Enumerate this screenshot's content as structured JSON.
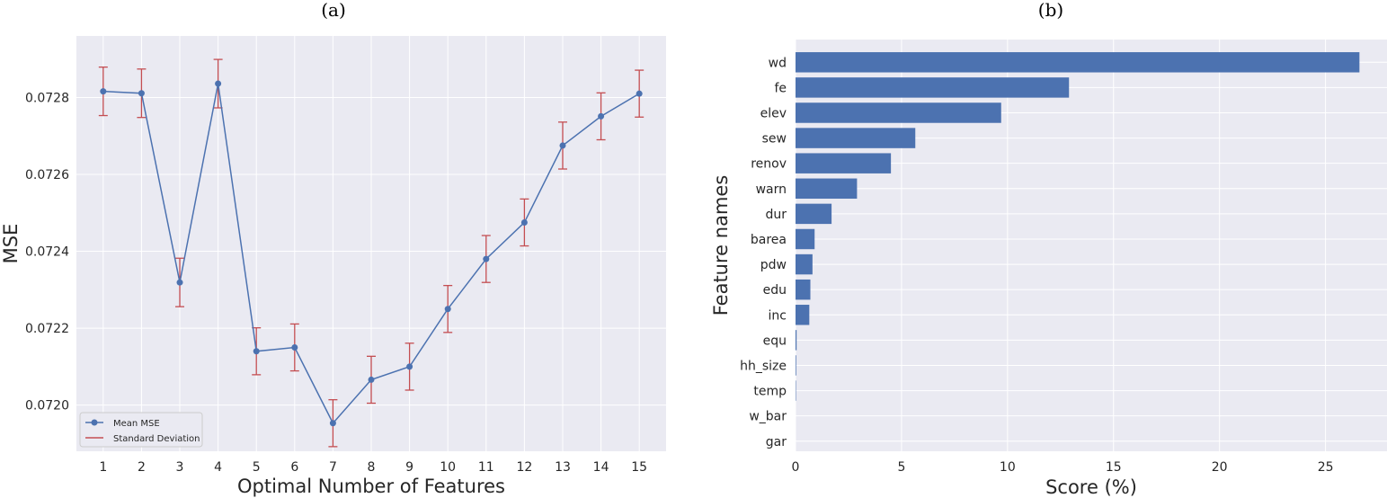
{
  "colors": {
    "panel_bg": "#eaeaf2",
    "grid": "#ffffff",
    "line": "#4c72b0",
    "errorbar": "#c44e52",
    "bar": "#4c72b0"
  },
  "chart_data": [
    {
      "type": "line",
      "title": "(a)",
      "xlabel": "Optimal Number of Features",
      "ylabel": "MSE",
      "x": [
        1,
        2,
        3,
        4,
        5,
        6,
        7,
        8,
        9,
        10,
        11,
        12,
        13,
        14,
        15
      ],
      "x_ticks": [
        "1",
        "2",
        "3",
        "4",
        "5",
        "6",
        "7",
        "8",
        "9",
        "10",
        "11",
        "12",
        "13",
        "14",
        "15"
      ],
      "xlim": [
        0.3,
        15.7
      ],
      "y_ticks": [
        "0.0720",
        "0.0722",
        "0.0724",
        "0.0726",
        "0.0728"
      ],
      "y_tick_values": [
        0.072,
        0.0722,
        0.0724,
        0.0726,
        0.0728
      ],
      "ylim": [
        0.07188,
        0.07296
      ],
      "grid": true,
      "legend_position": "lower-left",
      "series": [
        {
          "name": "Mean MSE",
          "values": [
            0.072816,
            0.072811,
            0.072319,
            0.072836,
            0.07214,
            0.07215,
            0.071953,
            0.072066,
            0.0721,
            0.07225,
            0.07238,
            0.072475,
            0.072675,
            0.072751,
            0.07281
          ],
          "std": [
            6.3e-05,
            6.3e-05,
            6.3e-05,
            6.3e-05,
            6.1e-05,
            6.1e-05,
            6.1e-05,
            6.1e-05,
            6.1e-05,
            6.1e-05,
            6.1e-05,
            6.1e-05,
            6.1e-05,
            6.1e-05,
            6.1e-05
          ]
        }
      ],
      "legend": [
        "Mean MSE",
        "Standard Deviation"
      ]
    },
    {
      "type": "bar",
      "orientation": "horizontal",
      "title": "(b)",
      "xlabel": "Score (%)",
      "ylabel": "Feature names",
      "categories": [
        "wd",
        "fe",
        "elev",
        "sew",
        "renov",
        "warn",
        "dur",
        "barea",
        "pdw",
        "edu",
        "inc",
        "equ",
        "hh_size",
        "temp",
        "w_bar",
        "gar"
      ],
      "values": [
        26.6,
        12.9,
        9.7,
        5.65,
        4.5,
        2.9,
        1.7,
        0.9,
        0.8,
        0.7,
        0.65,
        0.05,
        0.03,
        0.02,
        0.0,
        0.0
      ],
      "x_ticks": [
        "0",
        "5",
        "10",
        "15",
        "20",
        "25"
      ],
      "x_tick_values": [
        0,
        5,
        10,
        15,
        20,
        25
      ],
      "xlim": [
        0,
        27.9
      ],
      "grid": true
    }
  ]
}
